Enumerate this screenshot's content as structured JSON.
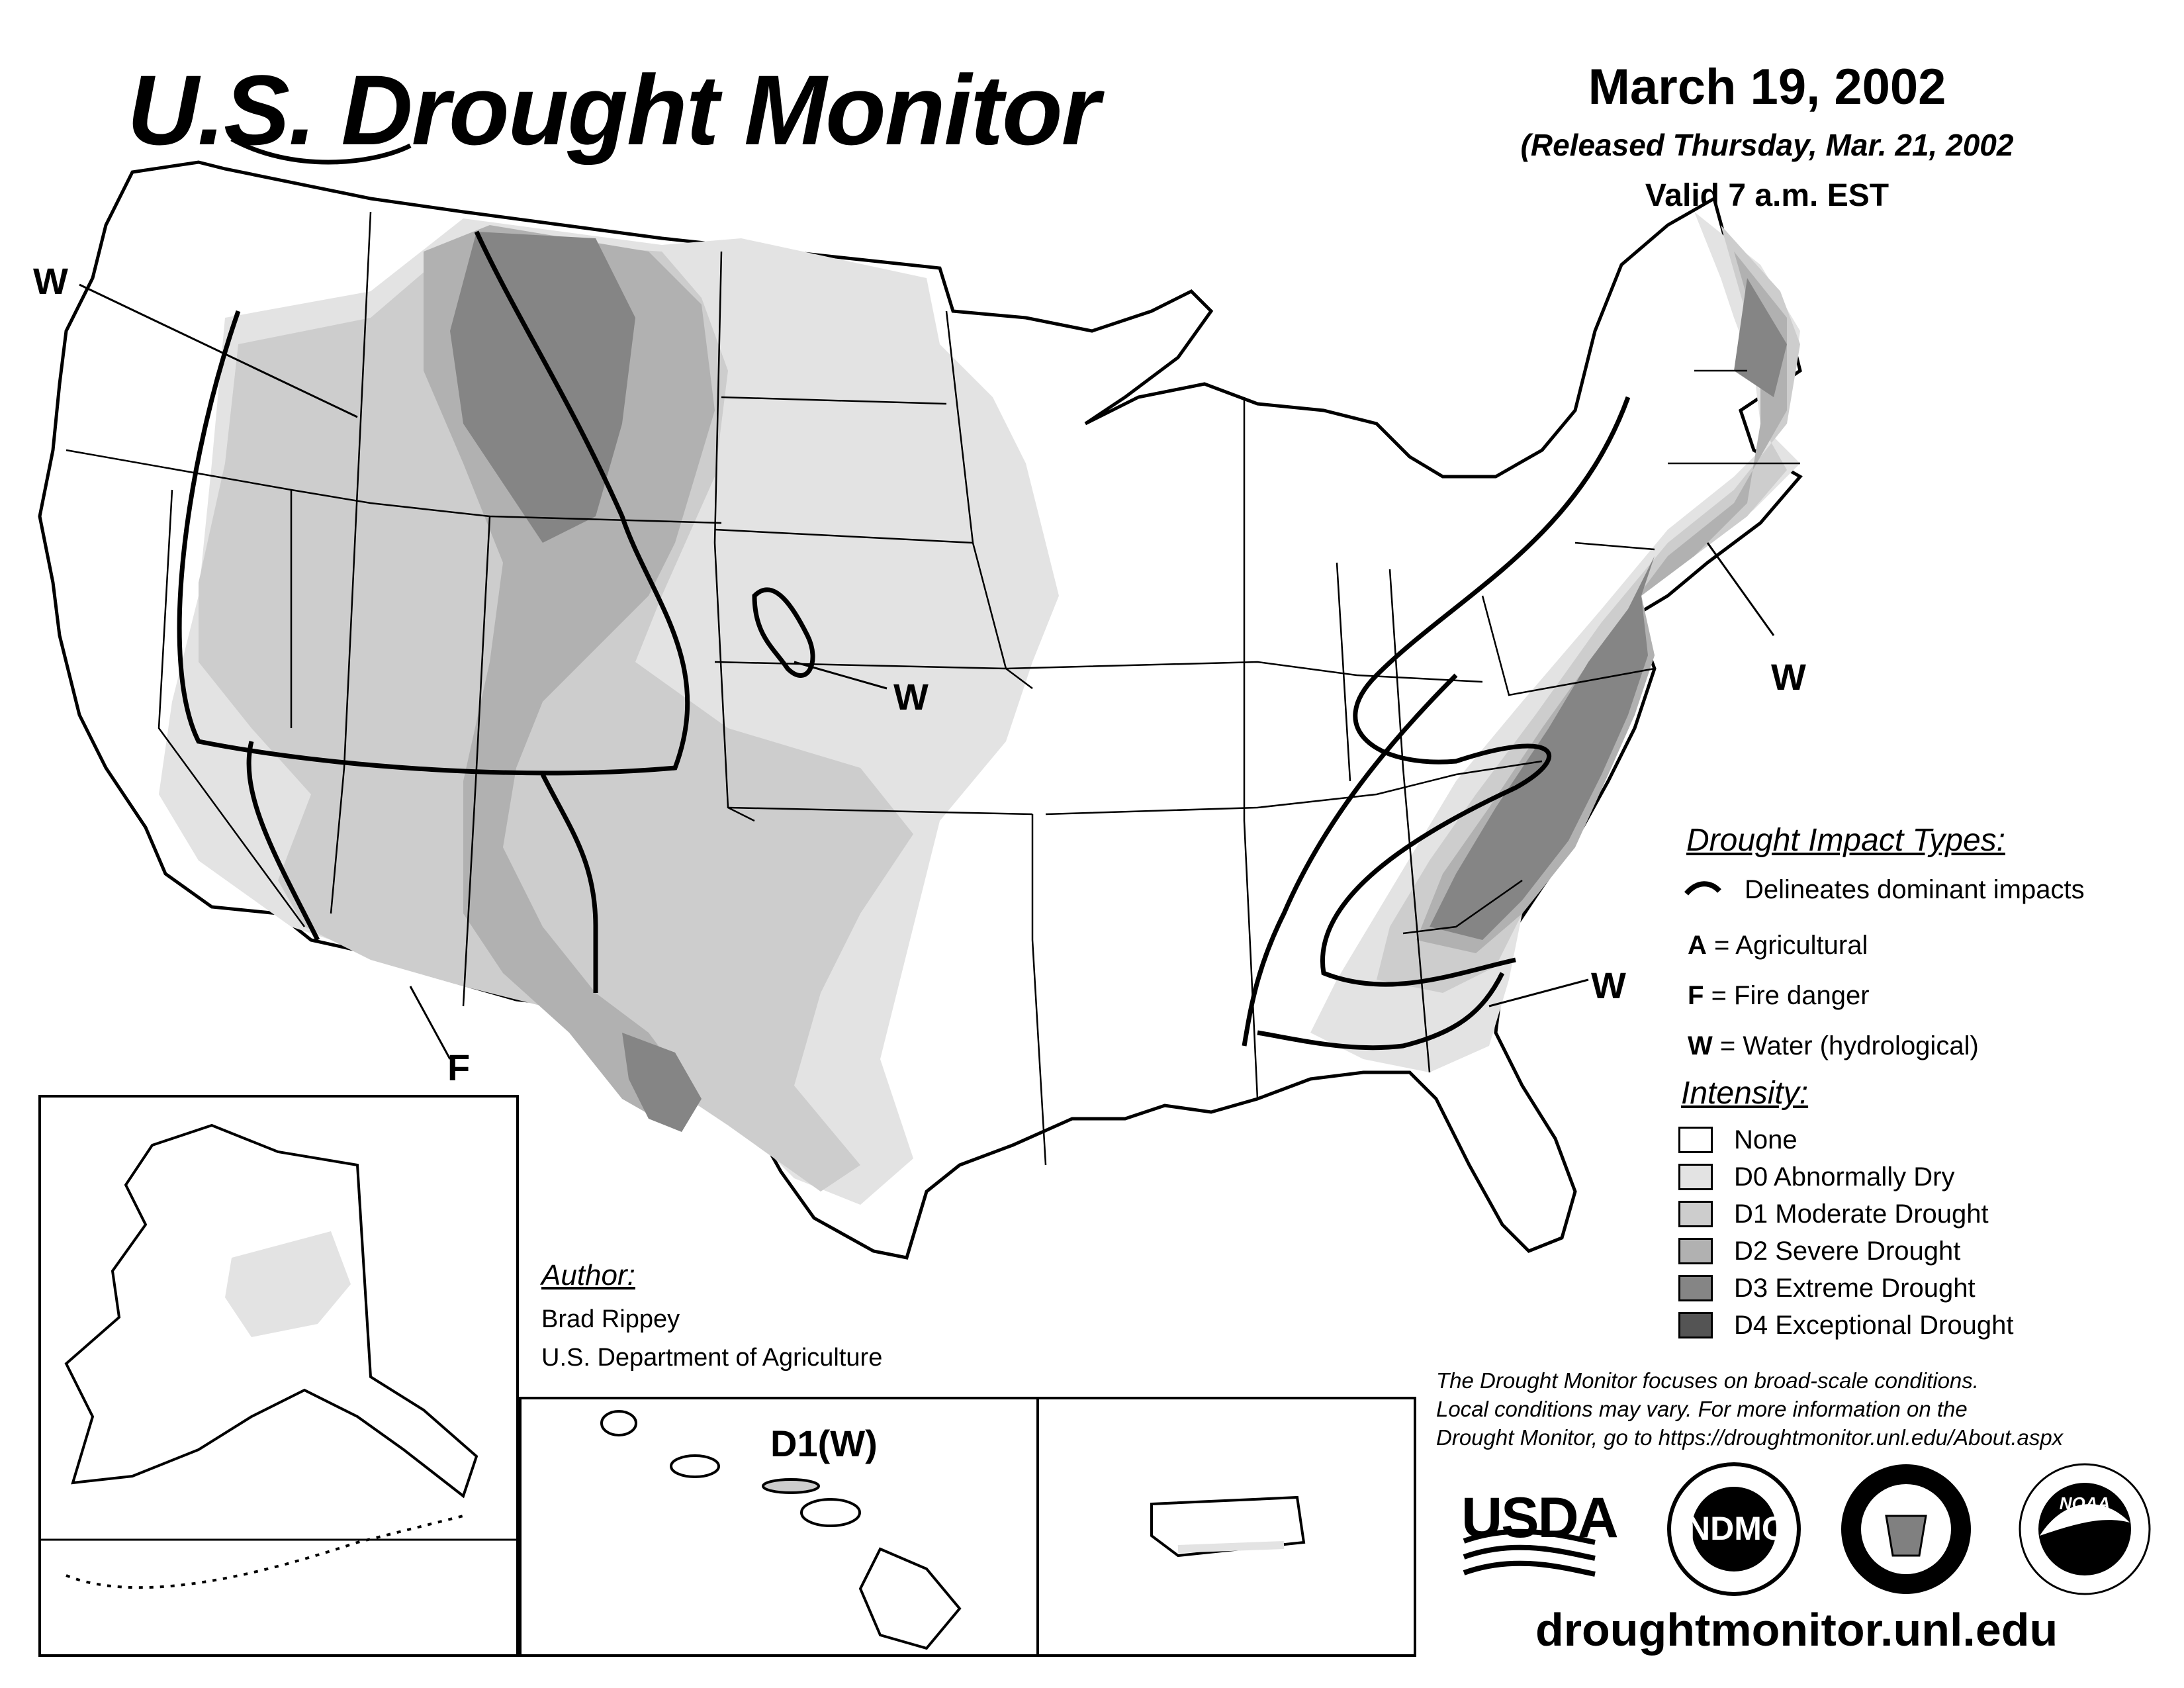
{
  "header": {
    "title": "U.S. Drought Monitor",
    "date": "March 19, 2002",
    "released": "(Released Thursday, Mar. 21, 2002",
    "valid": "Valid 7 a.m. EST"
  },
  "map_labels": {
    "w_northwest": "W",
    "w_nebraska": "W",
    "w_northeast": "W",
    "w_southeast": "W",
    "f_southwest": "F",
    "hawaii": "D1(W)"
  },
  "legend": {
    "impact_title": "Drought Impact Types:",
    "delineates": "Delineates dominant impacts",
    "agri_key": "A",
    "agri": "= Agricultural",
    "fire_key": "F",
    "fire": "= Fire danger",
    "water_key": "W",
    "water": "= Water (hydrological)",
    "intensity_title": "Intensity:",
    "intensity": [
      {
        "label": "None",
        "color": "#ffffff"
      },
      {
        "label": "D0 Abnormally Dry",
        "color": "#e3e3e3"
      },
      {
        "label": "D1 Moderate Drought",
        "color": "#cdcdcd"
      },
      {
        "label": "D2 Severe Drought",
        "color": "#b1b1b1"
      },
      {
        "label": "D3 Extreme Drought",
        "color": "#858585"
      },
      {
        "label": "D4 Exceptional Drought",
        "color": "#545454"
      }
    ]
  },
  "author": {
    "title": "Author:",
    "name": "Brad Rippey",
    "org": "U.S. Department of Agriculture"
  },
  "note": {
    "line1": "The Drought Monitor focuses on broad-scale conditions.",
    "line2": "Local conditions may vary. For more information on the",
    "line3": "Drought Monitor, go to https://droughtmonitor.unl.edu/About.aspx"
  },
  "logos": {
    "usda": "USDA",
    "ndmc": "NDMC",
    "noaa": "NOAA"
  },
  "website": "droughtmonitor.unl.edu"
}
